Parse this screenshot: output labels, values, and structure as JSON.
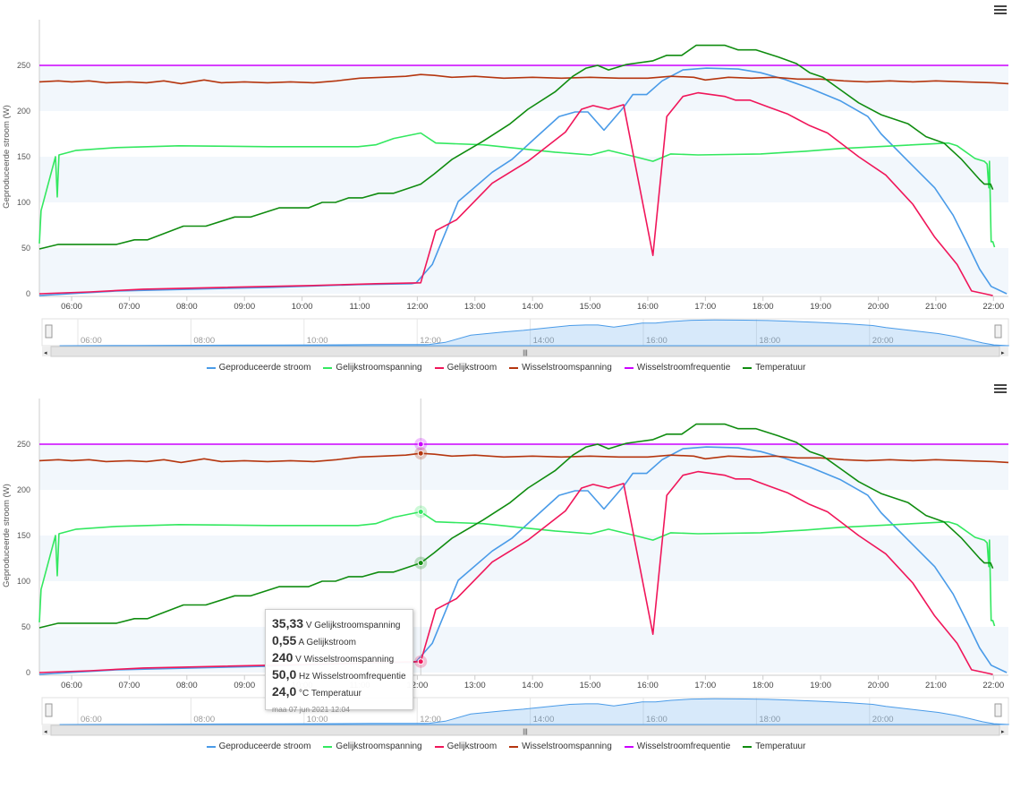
{
  "chart_data": [
    {
      "type": "line",
      "title": "",
      "xlabel": "",
      "ylabel": "Geproduceerde stroom (W)",
      "xlim": [
        5.44,
        22.26
      ],
      "ylim": [
        -2,
        300
      ],
      "yticks": [
        0,
        50,
        100,
        150,
        200,
        250
      ],
      "xticks": [
        "06:00",
        "07:00",
        "08:00",
        "09:00",
        "10:00",
        "11:00",
        "12:00",
        "13:00",
        "14:00",
        "15:00",
        "16:00",
        "17:00",
        "18:00",
        "19:00",
        "20:00",
        "21:00",
        "22:00"
      ],
      "navigator_ticks": [
        "06:00",
        "08:00",
        "10:00",
        "12:00",
        "14:00",
        "16:00",
        "18:00",
        "20:00"
      ],
      "x_unit": "hour of day",
      "legend_position": "bottom-center",
      "series": [
        {
          "name": "Geproduceerde stroom",
          "color": "#4a9be8",
          "points": [
            [
              5.44,
              -2
            ],
            [
              6.78,
              3
            ],
            [
              9.42,
              7
            ],
            [
              10.97,
              10
            ],
            [
              11.9,
              11
            ],
            [
              11.98,
              12
            ],
            [
              12.26,
              32
            ],
            [
              12.71,
              101
            ],
            [
              13.3,
              133
            ],
            [
              13.64,
              147
            ],
            [
              14.04,
              170
            ],
            [
              14.46,
              194
            ],
            [
              14.74,
              199
            ],
            [
              14.96,
              199
            ],
            [
              15.24,
              179
            ],
            [
              15.58,
              204
            ],
            [
              15.74,
              218
            ],
            [
              15.98,
              218
            ],
            [
              16.25,
              233
            ],
            [
              16.61,
              245
            ],
            [
              17.02,
              247
            ],
            [
              17.57,
              246
            ],
            [
              17.96,
              242
            ],
            [
              18.36,
              235
            ],
            [
              18.81,
              225
            ],
            [
              19.35,
              211
            ],
            [
              19.82,
              194
            ],
            [
              20.05,
              175
            ],
            [
              20.6,
              140
            ],
            [
              20.98,
              116
            ],
            [
              21.3,
              86
            ],
            [
              21.53,
              57
            ],
            [
              21.76,
              27
            ],
            [
              21.96,
              8
            ],
            [
              22.23,
              0
            ]
          ]
        },
        {
          "name": "Gelijkstroomspanning",
          "color": "#33e860",
          "points": [
            [
              5.44,
              55
            ],
            [
              5.47,
              91
            ],
            [
              5.72,
              150
            ],
            [
              5.75,
              106
            ],
            [
              5.78,
              152
            ],
            [
              6.08,
              157
            ],
            [
              6.78,
              160
            ],
            [
              7.86,
              162
            ],
            [
              9.42,
              161
            ],
            [
              10.97,
              161
            ],
            [
              11.28,
              163
            ],
            [
              11.59,
              170
            ],
            [
              12.06,
              176
            ],
            [
              12.32,
              165
            ],
            [
              13.14,
              163
            ],
            [
              13.76,
              159
            ],
            [
              14.39,
              155
            ],
            [
              15.01,
              152
            ],
            [
              15.32,
              157
            ],
            [
              15.78,
              150
            ],
            [
              16.09,
              145
            ],
            [
              16.4,
              153
            ],
            [
              16.87,
              152
            ],
            [
              17.96,
              153
            ],
            [
              18.73,
              156
            ],
            [
              19.35,
              159
            ],
            [
              20.29,
              162
            ],
            [
              21.22,
              165
            ],
            [
              21.37,
              162
            ],
            [
              21.68,
              148
            ],
            [
              21.84,
              145
            ],
            [
              21.89,
              142
            ],
            [
              21.92,
              116
            ],
            [
              21.93,
              145
            ],
            [
              21.96,
              57
            ],
            [
              21.99,
              57
            ],
            [
              22.02,
              51
            ]
          ]
        },
        {
          "name": "Gelijkstroom",
          "color": "#f0165a",
          "points": [
            [
              5.44,
              0
            ],
            [
              6.31,
              2
            ],
            [
              7.24,
              5
            ],
            [
              8.64,
              7
            ],
            [
              10.19,
              9
            ],
            [
              11.28,
              11
            ],
            [
              12.06,
              12
            ],
            [
              12.32,
              69
            ],
            [
              12.68,
              81
            ],
            [
              13.3,
              121
            ],
            [
              13.92,
              145
            ],
            [
              14.57,
              177
            ],
            [
              14.85,
              202
            ],
            [
              15.05,
              206
            ],
            [
              15.32,
              202
            ],
            [
              15.58,
              207
            ],
            [
              16.09,
              42
            ],
            [
              16.33,
              194
            ],
            [
              16.61,
              216
            ],
            [
              16.87,
              220
            ],
            [
              17.34,
              216
            ],
            [
              17.52,
              212
            ],
            [
              17.77,
              212
            ],
            [
              18.11,
              204
            ],
            [
              18.42,
              197
            ],
            [
              18.81,
              184
            ],
            [
              19.12,
              176
            ],
            [
              19.66,
              150
            ],
            [
              20.13,
              130
            ],
            [
              20.6,
              98
            ],
            [
              20.98,
              62
            ],
            [
              21.37,
              32
            ],
            [
              21.62,
              3
            ],
            [
              21.99,
              -2
            ]
          ]
        },
        {
          "name": "Wisselstroomspanning",
          "color": "#b5360f",
          "points": [
            [
              5.44,
              232
            ],
            [
              5.77,
              233
            ],
            [
              6.0,
              232
            ],
            [
              6.3,
              233
            ],
            [
              6.6,
              231
            ],
            [
              7.0,
              232
            ],
            [
              7.3,
              231
            ],
            [
              7.6,
              233
            ],
            [
              7.9,
              230
            ],
            [
              8.3,
              234
            ],
            [
              8.6,
              231
            ],
            [
              9.0,
              232
            ],
            [
              9.4,
              231
            ],
            [
              9.8,
              232
            ],
            [
              10.2,
              231
            ],
            [
              10.6,
              233
            ],
            [
              11.0,
              236
            ],
            [
              11.4,
              237
            ],
            [
              11.8,
              238
            ],
            [
              12.06,
              240
            ],
            [
              12.3,
              239
            ],
            [
              12.6,
              237
            ],
            [
              13.0,
              238
            ],
            [
              13.5,
              236
            ],
            [
              14.0,
              237
            ],
            [
              14.5,
              236
            ],
            [
              15.0,
              237
            ],
            [
              15.5,
              236
            ],
            [
              16.0,
              236
            ],
            [
              16.4,
              238
            ],
            [
              16.8,
              237
            ],
            [
              17.0,
              234
            ],
            [
              17.4,
              237
            ],
            [
              17.8,
              236
            ],
            [
              18.2,
              237
            ],
            [
              18.6,
              235
            ],
            [
              19.0,
              235
            ],
            [
              19.4,
              233
            ],
            [
              19.8,
              232
            ],
            [
              20.2,
              233
            ],
            [
              20.6,
              232
            ],
            [
              21.0,
              233
            ],
            [
              21.5,
              232
            ],
            [
              22.0,
              231
            ],
            [
              22.26,
              230
            ]
          ]
        },
        {
          "name": "Wisselstroomfrequentie",
          "color": "#cc00ff",
          "points": [
            [
              5.44,
              250
            ],
            [
              22.26,
              250
            ]
          ]
        },
        {
          "name": "Temperatuur",
          "color": "#108c10",
          "points": [
            [
              5.44,
              49
            ],
            [
              5.77,
              54
            ],
            [
              6.78,
              54
            ],
            [
              7.09,
              59
            ],
            [
              7.32,
              59
            ],
            [
              7.94,
              74
            ],
            [
              8.33,
              74
            ],
            [
              8.83,
              84
            ],
            [
              9.11,
              84
            ],
            [
              9.6,
              94
            ],
            [
              10.11,
              94
            ],
            [
              10.35,
              100
            ],
            [
              10.58,
              100
            ],
            [
              10.81,
              105
            ],
            [
              11.05,
              105
            ],
            [
              11.33,
              110
            ],
            [
              11.59,
              110
            ],
            [
              12.06,
              120
            ],
            [
              12.29,
              131
            ],
            [
              12.6,
              147
            ],
            [
              13.14,
              167
            ],
            [
              13.61,
              186
            ],
            [
              13.92,
              202
            ],
            [
              14.39,
              221
            ],
            [
              14.7,
              238
            ],
            [
              14.93,
              247
            ],
            [
              15.13,
              250
            ],
            [
              15.32,
              245
            ],
            [
              15.63,
              251
            ],
            [
              16.09,
              255
            ],
            [
              16.33,
              261
            ],
            [
              16.59,
              261
            ],
            [
              16.84,
              272
            ],
            [
              17.34,
              272
            ],
            [
              17.57,
              267
            ],
            [
              17.88,
              267
            ],
            [
              18.27,
              259
            ],
            [
              18.58,
              252
            ],
            [
              18.81,
              242
            ],
            [
              19.04,
              237
            ],
            [
              19.35,
              223
            ],
            [
              19.66,
              209
            ],
            [
              20.05,
              196
            ],
            [
              20.52,
              186
            ],
            [
              20.83,
              172
            ],
            [
              21.14,
              165
            ],
            [
              21.45,
              147
            ],
            [
              21.76,
              125
            ],
            [
              21.84,
              120
            ],
            [
              21.95,
              120
            ],
            [
              21.99,
              114
            ]
          ]
        }
      ]
    }
  ],
  "tooltip": {
    "hover_time": 12.06,
    "marker_values": {
      "Wisselstroomfrequentie": 250,
      "Wisselstroomspanning": 240,
      "Gelijkstroomspanning": 176,
      "Temperatuur": 120,
      "Gelijkstroom": 12
    },
    "rows": [
      {
        "value": "35,33",
        "unit": "V",
        "name": "Gelijkstroomspanning"
      },
      {
        "value": "0,55",
        "unit": "A",
        "name": "Gelijkstroom"
      },
      {
        "value": "240",
        "unit": "V",
        "name": "Wisselstroomspanning"
      },
      {
        "value": "50,0",
        "unit": "Hz",
        "name": "Wisselstroomfrequentie"
      },
      {
        "value": "24,0",
        "unit": "°C",
        "name": "Temperatuur"
      }
    ],
    "date": "maa 07 jun 2021 12:04"
  },
  "menu_icon": "hamburger-menu-icon"
}
